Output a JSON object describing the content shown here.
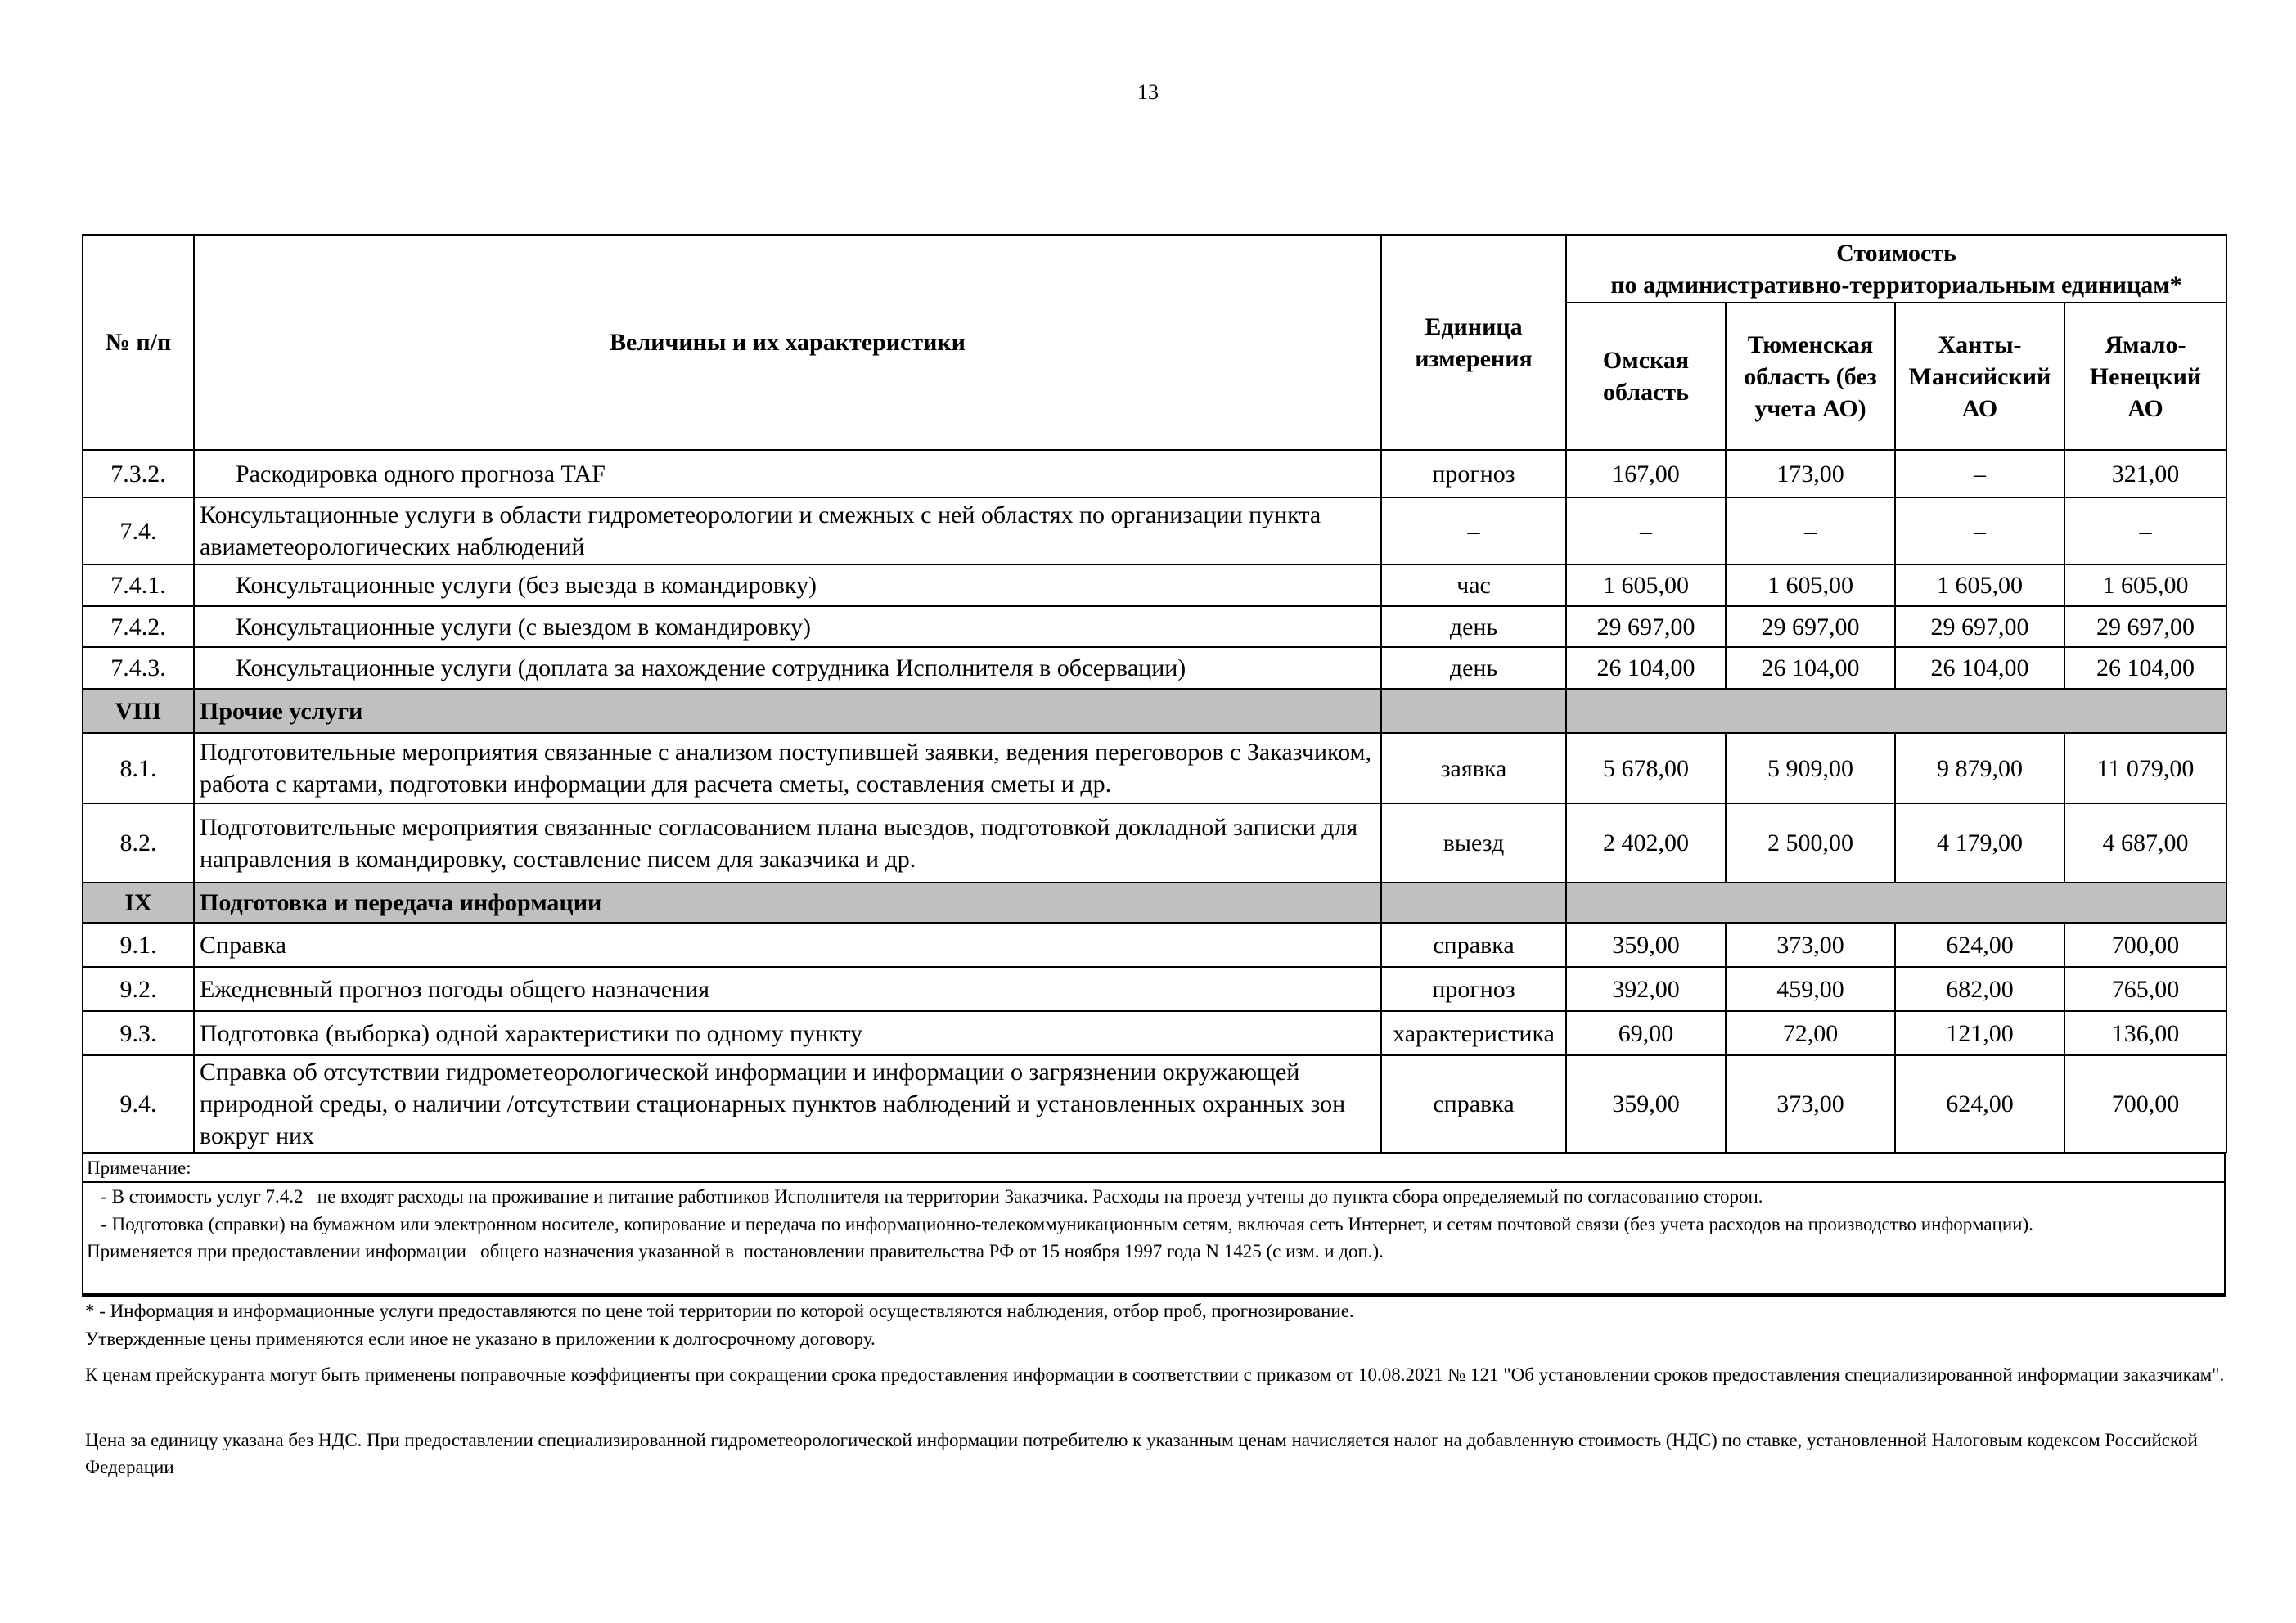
{
  "page_number": "13",
  "header": {
    "num": "№ п/п",
    "name": "Величины и их характеристики",
    "unit": "Единица измерения",
    "cost": "Стоимость",
    "cost_sub": "по  административно-территориальным единицам*",
    "regions": [
      "Омская область",
      "Тюменская область (без учета АО)",
      "Ханты-Мансийский АО",
      "Ямало-Ненецкий АО"
    ]
  },
  "rows": [
    {
      "type": "row",
      "num": "7.3.2.",
      "name": "Раскодировка одного прогноза TAF",
      "indent": true,
      "unit": "прогноз",
      "v": [
        "167,00",
        "173,00",
        "–",
        "321,00"
      ]
    },
    {
      "type": "row",
      "num": "7.4.",
      "name": "Консультационные услуги в области гидрометеорологии и смежных с ней областях по организации пункта авиаметеорологических наблюдений",
      "indent": false,
      "unit": "–",
      "v": [
        "–",
        "–",
        "–",
        "–"
      ]
    },
    {
      "type": "row",
      "num": "7.4.1.",
      "name": "Консультационные услуги (без выезда в командировку)",
      "indent": true,
      "unit": "час",
      "v": [
        "1 605,00",
        "1 605,00",
        "1 605,00",
        "1 605,00"
      ]
    },
    {
      "type": "row",
      "num": "7.4.2.",
      "name": "Консультационные услуги (с выездом в командировку)",
      "indent": true,
      "unit": "день",
      "v": [
        "29 697,00",
        "29 697,00",
        "29 697,00",
        "29 697,00"
      ]
    },
    {
      "type": "row",
      "num": "7.4.3.",
      "name": "Консультационные услуги (доплата за нахождение сотрудника Исполнителя в обсервации)",
      "indent": true,
      "unit": "день",
      "v": [
        "26 104,00",
        "26 104,00",
        "26 104,00",
        "26 104,00"
      ]
    },
    {
      "type": "section",
      "num": "VIII",
      "name": "Прочие услуги"
    },
    {
      "type": "row",
      "num": "8.1.",
      "name": "Подготовительные мероприятия связанные с анализом поступившей заявки, ведения переговоров с Заказчиком, работа с картами, подготовки информации для расчета сметы, составления сметы и др.",
      "indent": false,
      "unit": "заявка",
      "v": [
        "5 678,00",
        "5 909,00",
        "9 879,00",
        "11 079,00"
      ]
    },
    {
      "type": "row",
      "num": "8.2.",
      "name": "Подготовительные мероприятия связанные  согласованием плана выездов, подготовкой докладной записки для направления в командировку, составление писем для заказчика и др.",
      "indent": false,
      "unit": "выезд",
      "v": [
        "2 402,00",
        "2 500,00",
        "4 179,00",
        "4 687,00"
      ]
    },
    {
      "type": "section",
      "num": "IX",
      "name": "Подготовка и передача информации"
    },
    {
      "type": "row",
      "num": "9.1.",
      "name": "Справка",
      "indent": false,
      "unit": "справка",
      "v": [
        "359,00",
        "373,00",
        "624,00",
        "700,00"
      ]
    },
    {
      "type": "row",
      "num": "9.2.",
      "name": "Ежедневный прогноз погоды общего назначения",
      "indent": false,
      "unit": "прогноз",
      "v": [
        "392,00",
        "459,00",
        "682,00",
        "765,00"
      ]
    },
    {
      "type": "row",
      "num": "9.3.",
      "name": "Подготовка (выборка) одной характеристики по одному пункту",
      "indent": false,
      "unit": "характеристика",
      "v": [
        "69,00",
        "72,00",
        "121,00",
        "136,00"
      ]
    },
    {
      "type": "row",
      "num": "9.4.",
      "name": "Справка об отсутствии гидрометеорологической информации и информации о загрязнении окружающей природной среды, о наличии /отсутствии стационарных пунктов наблюдений и установленных охранных зон вокруг них",
      "indent": false,
      "unit": "справка",
      "v": [
        "359,00",
        "373,00",
        "624,00",
        "700,00"
      ]
    }
  ],
  "note": {
    "title": "Примечание:",
    "lines": [
      "   - В стоимость услуг 7.4.2   не входят расходы на проживание и питание работников Исполнителя на территории Заказчика. Расходы на проезд учтены до пункта сбора определяемый по согласованию сторон.",
      "   - Подготовка (справки) на бумажном или электронном носителе, копирование и передача по информационно-телекоммуникационным сетям, включая сеть Интернет, и сетям почтовой связи (без учета расходов на производство информации).",
      "Применяется при предоставлении информации   общего назначения указанной в  постановлении правительства РФ от 15 ноября 1997 года N 1425 (с изм. и доп.)."
    ]
  },
  "footer": [
    "* - Информация и информационные услуги предоставляются по цене той территории по которой осуществляются наблюдения, отбор проб, прогнозирование.",
    "Утвержденные цены применяются если иное не указано в приложении к долгосрочному договору.",
    "К ценам прейскуранта могут быть применены поправочные коэффициенты  при сокращении срока предоставления информации в соответствии с приказом от 10.08.2021 № 121 \"Об установлении сроков предоставления специализированной информации заказчикам\".",
    "Цена за единицу указана без НДС. При предоставлении специализированной гидрометеорологической информации потребителю к указанным ценам начисляется налог на добавленную стоимость (НДС) по ставке, установленной Налоговым кодексом Российской Федерации"
  ]
}
